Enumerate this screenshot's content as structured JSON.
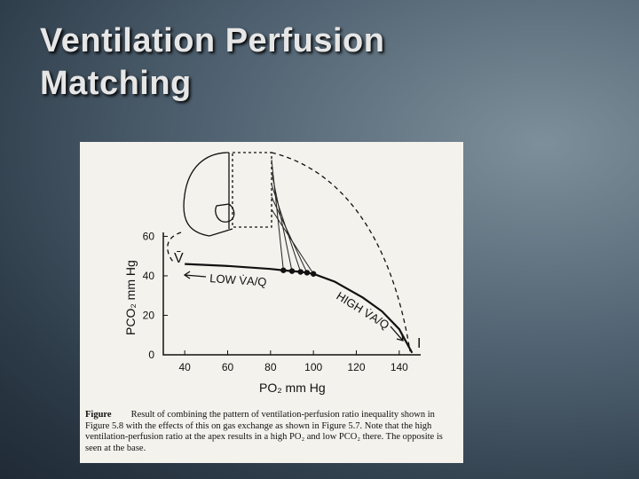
{
  "slide": {
    "title": "Ventilation Perfusion Matching"
  },
  "chart_data": {
    "type": "line",
    "xlabel": "PO₂ mm Hg",
    "ylabel": "PCO₂ mm Hg",
    "xlim": [
      30,
      150
    ],
    "ylim": [
      0,
      62
    ],
    "xticks": [
      40,
      60,
      80,
      100,
      120,
      140
    ],
    "yticks": [
      0,
      20,
      40,
      60
    ],
    "series": [
      {
        "color": "#111111",
        "x": [
          40,
          60,
          80,
          86,
          90,
          94,
          97,
          100,
          110,
          123,
          132,
          140,
          146
        ],
        "values": [
          46,
          45,
          43.5,
          42.8,
          42.4,
          42,
          41.6,
          41,
          37,
          29,
          22,
          13,
          1
        ]
      },
      {
        "color": "#111111",
        "x": [
          86,
          90,
          94,
          97,
          100
        ],
        "values": [
          42.8,
          42.4,
          42,
          41.6,
          41
        ]
      }
    ],
    "annotations": [
      "V̄",
      "I",
      "LOW V̇A/Q",
      "HIGH V̇A/Q"
    ]
  },
  "caption": {
    "label": "Figure",
    "text": "Result of combining the pattern of ventilation-perfusion ratio inequality shown in Figure 5.8 with the effects of this on gas exchange as shown in Figure 5.7. Note that the high ventilation-perfusion ratio at the apex results in a high PO₂ and low PCO₂ there. The opposite is seen at the base."
  }
}
